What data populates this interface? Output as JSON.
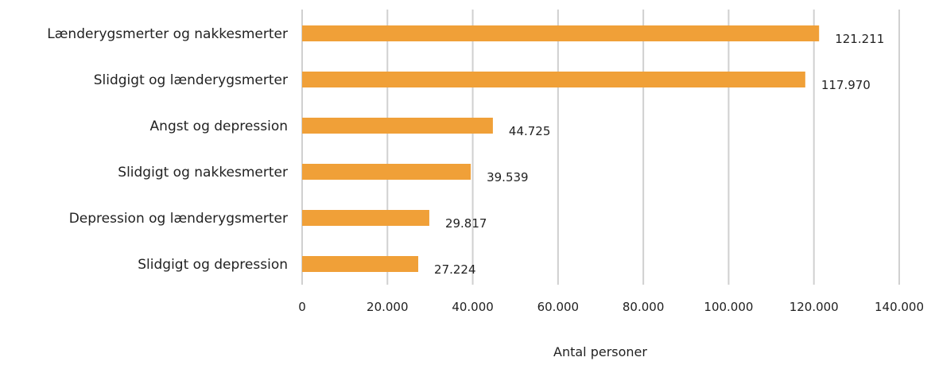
{
  "chart_data": {
    "type": "bar",
    "orientation": "horizontal",
    "categories": [
      "Lænderygsmerter og nakkesmerter",
      "Slidgigt og lænderygsmerter",
      "Angst og depression",
      "Slidgigt og nakkesmerter",
      "Depression og lænderygsmerter",
      "Slidgigt og depression"
    ],
    "values": [
      121211,
      117970,
      44725,
      39539,
      29817,
      27224
    ],
    "data_labels": [
      "121.211",
      "117.970",
      "44.725",
      "39.539",
      "29.817",
      "27.224"
    ],
    "xlim": [
      0,
      140000
    ],
    "xticks": [
      0,
      20000,
      40000,
      60000,
      80000,
      100000,
      120000,
      140000
    ],
    "xtick_labels": [
      "0",
      "20.000",
      "40.000",
      "60.000",
      "80.000",
      "100.000",
      "120.000",
      "140.000"
    ],
    "xlabel": "Antal personer",
    "ylabel": "",
    "title": "",
    "grid": "vertical",
    "legend": "none",
    "bar_color": "#F0A038",
    "grid_color": "#D0D0D0"
  }
}
